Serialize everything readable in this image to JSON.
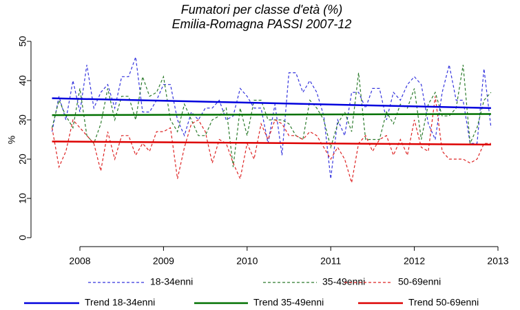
{
  "chart_data": {
    "type": "line",
    "title": "Fumatori per classe d'età (%)",
    "subtitle": "Emilia-Romagna PASSI 2007-12",
    "y_label": "%",
    "x": [
      2007.667,
      2007.75,
      2007.833,
      2007.917,
      2008.0,
      2008.083,
      2008.167,
      2008.25,
      2008.333,
      2008.417,
      2008.5,
      2008.583,
      2008.667,
      2008.75,
      2008.833,
      2008.917,
      2009.0,
      2009.083,
      2009.167,
      2009.25,
      2009.333,
      2009.417,
      2009.5,
      2009.583,
      2009.667,
      2009.75,
      2009.833,
      2009.917,
      2010.0,
      2010.083,
      2010.167,
      2010.25,
      2010.333,
      2010.417,
      2010.5,
      2010.583,
      2010.667,
      2010.75,
      2010.833,
      2010.917,
      2011.0,
      2011.083,
      2011.167,
      2011.25,
      2011.333,
      2011.417,
      2011.5,
      2011.583,
      2011.667,
      2011.75,
      2011.833,
      2011.917,
      2012.0,
      2012.083,
      2012.167,
      2012.25,
      2012.333,
      2012.417,
      2012.5,
      2012.583,
      2012.667,
      2012.75,
      2012.833,
      2012.917
    ],
    "series": [
      {
        "name": "18-34enni",
        "color": "#3333dd",
        "dashed": true,
        "values": [
          27,
          36,
          30,
          40,
          32,
          44,
          33,
          37,
          39,
          33,
          41,
          41,
          46,
          32,
          32,
          35,
          39,
          39,
          30,
          26,
          32,
          30,
          33,
          33,
          35,
          30,
          31,
          38,
          36,
          33,
          33,
          24,
          34,
          21,
          42,
          42,
          37,
          40,
          37,
          31,
          15,
          30,
          26,
          37,
          37,
          33,
          38,
          38,
          30,
          37,
          35,
          39,
          41,
          39,
          29,
          25,
          37,
          44,
          35,
          35,
          24,
          24,
          43,
          28
        ]
      },
      {
        "name": "35-49enni",
        "color": "#2a7a2a",
        "dashed": true,
        "values": [
          28,
          35,
          31,
          28,
          38,
          26,
          24,
          29,
          38,
          30,
          36,
          36,
          30,
          41,
          36,
          37,
          41,
          30,
          27,
          34,
          30,
          26,
          26,
          30,
          31,
          33,
          18,
          33,
          26,
          35,
          35,
          30,
          30,
          30,
          29,
          26,
          25,
          35,
          33,
          30,
          23,
          29,
          32,
          27,
          42,
          25,
          25,
          25,
          32,
          29,
          34,
          33,
          38,
          25,
          34,
          37,
          31,
          31,
          33,
          44,
          24,
          28,
          35,
          37
        ]
      },
      {
        "name": "50-69enni",
        "color": "#dd2222",
        "dashed": true,
        "values": [
          28,
          18,
          22,
          30,
          28,
          26,
          24,
          17,
          27,
          20,
          26,
          26,
          21,
          24,
          22,
          27,
          27,
          28,
          15,
          23,
          29,
          30,
          27,
          19,
          25,
          24,
          19,
          15,
          24,
          20,
          29,
          25,
          30,
          29,
          26,
          26,
          25,
          27,
          26,
          23,
          20,
          23,
          20,
          14,
          24,
          26,
          22,
          25,
          26,
          21,
          25,
          21,
          30,
          23,
          22,
          36,
          22,
          20,
          20,
          20,
          19,
          20,
          24,
          24
        ]
      },
      {
        "name": "Trend 18-34enni",
        "color": "#0000dd",
        "dashed": false,
        "x": [
          2007.667,
          2012.917
        ],
        "values": [
          35.5,
          33
        ]
      },
      {
        "name": "Trend 35-49enni",
        "color": "#007000",
        "dashed": false,
        "x": [
          2007.667,
          2012.917
        ],
        "values": [
          31.2,
          31.5
        ]
      },
      {
        "name": "Trend 50-69enni",
        "color": "#dd0000",
        "dashed": false,
        "x": [
          2007.667,
          2012.917
        ],
        "values": [
          24.5,
          23.7
        ]
      }
    ],
    "xlim": [
      2008,
      2013
    ],
    "xticks": [
      2008,
      2009,
      2010,
      2011,
      2012,
      2013
    ],
    "ylim": [
      0,
      50
    ],
    "yticks": [
      0,
      10,
      20,
      30,
      40,
      50
    ]
  }
}
